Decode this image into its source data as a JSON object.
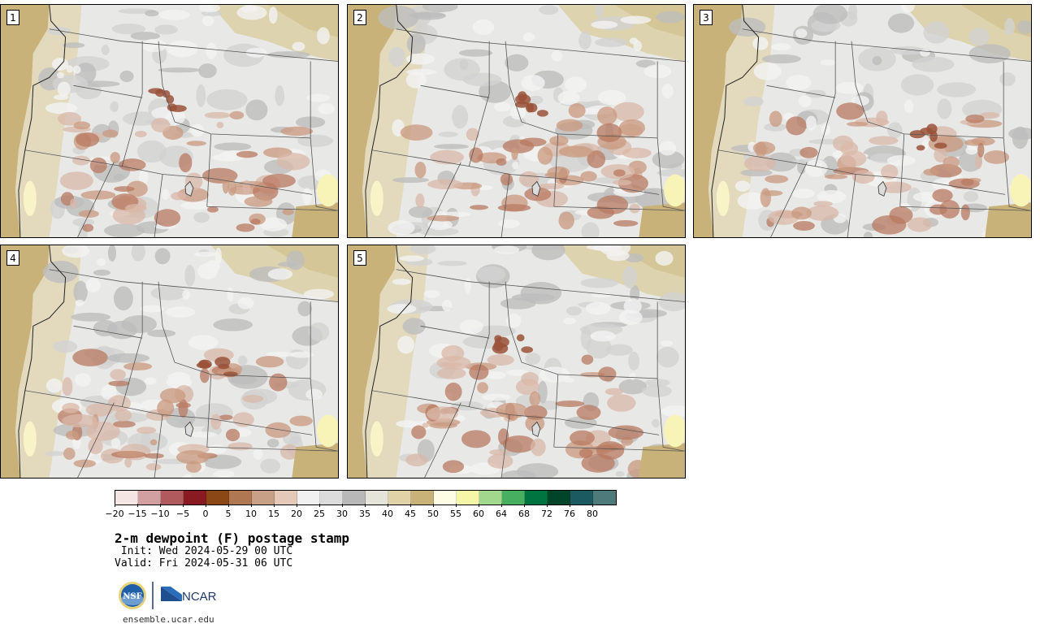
{
  "panels": [
    {
      "label": "1"
    },
    {
      "label": "2"
    },
    {
      "label": "3"
    },
    {
      "label": "4"
    },
    {
      "label": "5"
    }
  ],
  "colorbar": {
    "colors": [
      "#f4e4e2",
      "#d2a0a0",
      "#b05a5e",
      "#8a1a22",
      "#8c4716",
      "#b07852",
      "#c8a088",
      "#e4c8b8",
      "#f0f0f0",
      "#dcdcdc",
      "#b8b8b8",
      "#e4e4d8",
      "#e2d2a8",
      "#c9b278",
      "#fdfce4",
      "#f6f6a8",
      "#a2d88e",
      "#46b060",
      "#007440",
      "#00442a",
      "#1a5a60",
      "#4f7a7c"
    ],
    "tick_labels": [
      "−20",
      "−15",
      "−10",
      "−5",
      "0",
      "5",
      "10",
      "15",
      "20",
      "25",
      "30",
      "35",
      "40",
      "45",
      "50",
      "55",
      "60",
      "64",
      "68",
      "72",
      "76",
      "80"
    ]
  },
  "title": "2-m dewpoint (F) postage stamp",
  "init": " Init: Wed 2024-05-29 00 UTC",
  "valid": "Valid: Fri 2024-05-31 06 UTC",
  "logos": {
    "nsf": "NSF",
    "ncar": "NCAR"
  },
  "url": "ensemble.ucar.edu"
}
